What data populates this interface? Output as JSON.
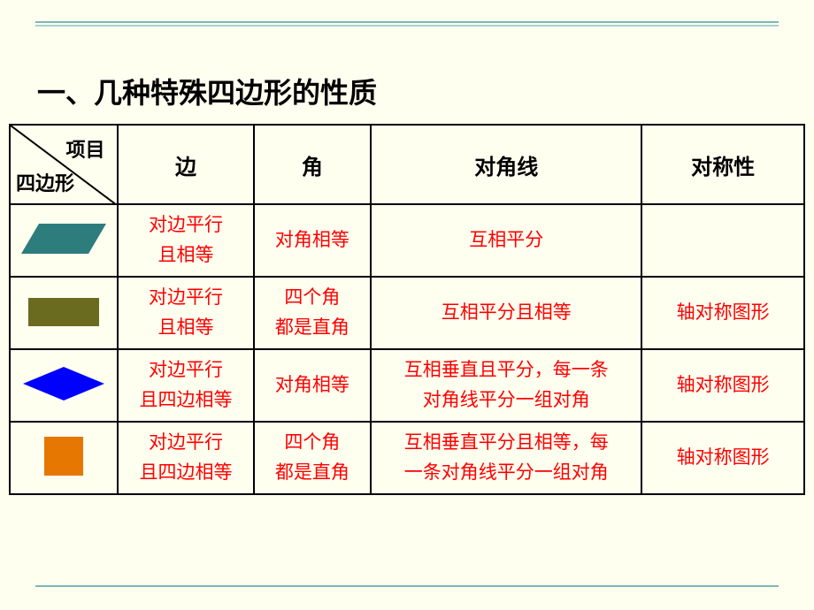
{
  "title": "一、几种特殊四边形的性质",
  "header": {
    "diag_top": "项目",
    "diag_bottom": "四边形",
    "cols": [
      "边",
      "角",
      "对角线",
      "对称性"
    ]
  },
  "rows": [
    {
      "shape": {
        "type": "parallelogram",
        "fill": "#2d7d7d"
      },
      "side": "对边平行\n且相等",
      "angle": "对角相等",
      "diagonal": "互相平分",
      "symmetry": ""
    },
    {
      "shape": {
        "type": "rectangle",
        "fill": "#6b6b1f"
      },
      "side": "对边平行\n且相等",
      "angle": "四个角\n都是直角",
      "diagonal": "互相平分且相等",
      "symmetry": "轴对称图形"
    },
    {
      "shape": {
        "type": "rhombus",
        "fill": "#0000ff"
      },
      "side": "对边平行\n且四边相等",
      "angle": "对角相等",
      "diagonal": "互相垂直且平分，每一条\n对角线平分一组对角",
      "symmetry": "轴对称图形"
    },
    {
      "shape": {
        "type": "square",
        "fill": "#e67700"
      },
      "side": "对边平行\n且四边相等",
      "angle": "四个角\n都是直角",
      "diagonal": "互相垂直平分且相等，每\n一条对角线平分一组对角",
      "symmetry": "轴对称图形"
    }
  ],
  "colors": {
    "background": "#fffff0",
    "accent": "#7bb8b8",
    "text_data": "#ff0000",
    "text_header": "#000000"
  },
  "typography": {
    "title_fontsize": 32,
    "header_fontsize": 24,
    "cell_fontsize": 21
  }
}
